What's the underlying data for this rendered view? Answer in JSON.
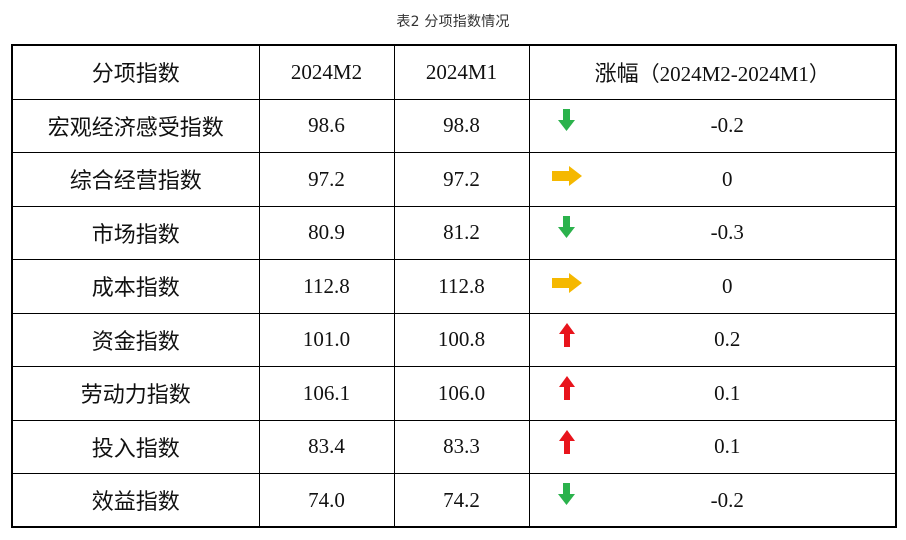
{
  "caption": "表2  分项指数情况",
  "headers": {
    "name": "分项指数",
    "current": "2024M2",
    "previous": "2024M1",
    "change_label": "涨幅",
    "change_period": "（2024M2-2024M1）"
  },
  "rows": [
    {
      "name": "宏观经济感受指数",
      "current": "98.6",
      "previous": "98.8",
      "trend": "down",
      "change": "-0.2"
    },
    {
      "name": "综合经营指数",
      "current": "97.2",
      "previous": "97.2",
      "trend": "flat",
      "change": "0"
    },
    {
      "name": "市场指数",
      "current": "80.9",
      "previous": "81.2",
      "trend": "down",
      "change": "-0.3"
    },
    {
      "name": "成本指数",
      "current": "112.8",
      "previous": "112.8",
      "trend": "flat",
      "change": "0"
    },
    {
      "name": "资金指数",
      "current": "101.0",
      "previous": "100.8",
      "trend": "up",
      "change": "0.2"
    },
    {
      "name": "劳动力指数",
      "current": "106.1",
      "previous": "106.0",
      "trend": "up",
      "change": "0.1"
    },
    {
      "name": "投入指数",
      "current": "83.4",
      "previous": "83.3",
      "trend": "up",
      "change": "0.1"
    },
    {
      "name": "效益指数",
      "current": "74.0",
      "previous": "74.2",
      "trend": "down",
      "change": "-0.2"
    }
  ],
  "icons": {
    "down": "arrow-down-icon",
    "flat": "arrow-right-icon",
    "up": "arrow-up-icon"
  },
  "colors": {
    "down": "#2bb24c",
    "flat": "#f5b800",
    "up": "#e8141c"
  }
}
